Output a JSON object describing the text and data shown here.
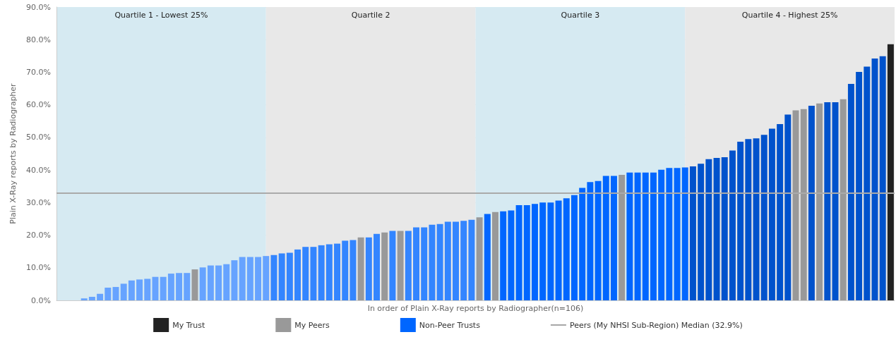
{
  "chart_data": {
    "type": "bar",
    "xlabel": "In order of Plain X-Ray reports by Radiographer(n=106)",
    "ylabel": "Plain X-Ray reports by Radiographer",
    "categories": [
      null,
      null,
      null,
      null,
      null,
      null,
      null,
      null,
      null,
      null,
      null,
      null,
      null,
      null,
      null,
      null,
      null,
      null,
      null,
      null,
      null,
      null,
      null,
      null,
      null,
      null,
      null,
      null,
      null,
      null,
      null,
      null,
      null,
      null,
      null,
      null,
      null,
      null,
      null,
      null,
      null,
      null,
      null,
      null,
      null,
      null,
      null,
      null,
      null,
      null,
      null,
      null,
      null,
      null,
      null,
      null,
      null,
      null,
      null,
      null,
      null,
      null,
      null,
      null,
      null,
      null,
      null,
      null,
      null,
      null,
      null,
      null,
      null,
      null,
      null,
      null,
      null,
      null,
      null,
      null,
      null,
      null,
      null,
      null,
      null,
      null,
      null,
      null,
      null,
      null,
      null,
      null,
      null,
      null,
      null,
      null,
      null,
      null,
      null,
      null,
      null,
      null,
      null,
      null,
      null,
      null
    ],
    "ylim": [
      0,
      90
    ],
    "yticks": [
      {
        "value": 0,
        "label": "0.0%"
      },
      {
        "value": 10,
        "label": "10.0%"
      },
      {
        "value": 20,
        "label": "20.0%"
      },
      {
        "value": 30,
        "label": "30.0%"
      },
      {
        "value": 40,
        "label": "40.0%"
      },
      {
        "value": 50,
        "label": "50.0%"
      },
      {
        "value": 60,
        "label": "60.0%"
      },
      {
        "value": 70,
        "label": "70.0%"
      },
      {
        "value": 80,
        "label": "80.0%"
      },
      {
        "value": 90,
        "label": "90.0%"
      }
    ],
    "tick_labels": "y",
    "grid": "y",
    "legend": "bottom",
    "series": [
      {
        "name": "My Trust",
        "color": "#222222",
        "values": [
          null,
          null,
          null,
          null,
          null,
          null,
          null,
          null,
          null,
          null,
          null,
          null,
          null,
          null,
          null,
          null,
          null,
          null,
          null,
          null,
          null,
          null,
          null,
          null,
          null,
          null,
          null,
          null,
          null,
          null,
          null,
          null,
          null,
          null,
          null,
          null,
          null,
          null,
          null,
          null,
          null,
          null,
          null,
          null,
          null,
          null,
          null,
          null,
          null,
          null,
          null,
          null,
          null,
          null,
          null,
          null,
          null,
          null,
          null,
          null,
          null,
          null,
          null,
          null,
          null,
          null,
          null,
          null,
          null,
          null,
          null,
          null,
          null,
          null,
          null,
          null,
          null,
          null,
          null,
          null,
          null,
          null,
          null,
          null,
          null,
          null,
          null,
          null,
          null,
          null,
          null,
          null,
          null,
          null,
          null,
          null,
          null,
          null,
          null,
          null,
          null,
          null,
          null,
          null,
          null,
          78.6
        ]
      },
      {
        "name": "My Peers",
        "color": "#999999",
        "values": [
          null,
          null,
          null,
          null,
          null,
          null,
          null,
          null,
          null,
          null,
          null,
          null,
          null,
          null,
          null,
          null,
          null,
          9.5,
          null,
          null,
          null,
          null,
          null,
          null,
          null,
          null,
          null,
          null,
          null,
          null,
          null,
          null,
          null,
          null,
          null,
          null,
          null,
          null,
          19.3,
          null,
          null,
          20.8,
          null,
          21.3,
          null,
          null,
          null,
          null,
          null,
          null,
          null,
          null,
          null,
          25.5,
          null,
          27.1,
          null,
          null,
          null,
          null,
          null,
          null,
          null,
          null,
          null,
          null,
          null,
          null,
          null,
          null,
          null,
          38.5,
          null,
          null,
          null,
          null,
          null,
          null,
          null,
          null,
          null,
          null,
          null,
          null,
          null,
          null,
          null,
          null,
          null,
          null,
          null,
          null,
          null,
          58.3,
          58.7,
          null,
          60.4,
          null,
          null,
          61.7,
          null,
          null,
          null,
          null,
          null,
          null
        ]
      },
      {
        "name": "Non-Peer Trusts",
        "color": "#0066ff",
        "values": [
          0,
          0,
          0,
          0.6,
          1.1,
          2.0,
          3.9,
          4.1,
          5.1,
          6.1,
          6.4,
          6.6,
          7.2,
          7.2,
          8.2,
          8.4,
          8.4,
          null,
          10.1,
          10.7,
          10.7,
          11.1,
          12.3,
          13.3,
          13.3,
          13.3,
          13.6,
          13.9,
          14.4,
          14.6,
          15.6,
          16.4,
          16.4,
          16.9,
          17.2,
          17.4,
          18.3,
          18.5,
          null,
          19.3,
          20.4,
          null,
          21.3,
          null,
          21.3,
          22.4,
          22.4,
          23.2,
          23.4,
          24.1,
          24.1,
          24.4,
          24.7,
          null,
          26.5,
          null,
          27.3,
          27.6,
          29.2,
          29.2,
          29.6,
          30.0,
          30.0,
          30.6,
          31.3,
          32.3,
          34.5,
          36.3,
          36.6,
          38.2,
          38.2,
          null,
          39.2,
          39.2,
          39.2,
          39.2,
          40.1,
          40.6,
          40.6,
          40.8,
          41.1,
          41.9,
          43.3,
          43.7,
          43.9,
          46.0,
          48.7,
          49.5,
          49.7,
          50.8,
          52.7,
          54.1,
          57.0,
          null,
          null,
          59.7,
          null,
          60.8,
          60.8,
          null,
          66.4,
          70.1,
          71.7,
          74.2,
          74.9,
          null
        ],
        "colors": [
          "#66a3ff",
          "#66a3ff",
          "#66a3ff",
          "#66a3ff",
          "#66a3ff",
          "#66a3ff",
          "#66a3ff",
          "#66a3ff",
          "#66a3ff",
          "#66a3ff",
          "#66a3ff",
          "#66a3ff",
          "#66a3ff",
          "#66a3ff",
          "#66a3ff",
          "#66a3ff",
          "#66a3ff",
          "#66a3ff",
          "#66a3ff",
          "#66a3ff",
          "#66a3ff",
          "#66a3ff",
          "#66a3ff",
          "#66a3ff",
          "#66a3ff",
          "#66a3ff",
          "#66a3ff",
          "#3385ff",
          "#3385ff",
          "#3385ff",
          "#3385ff",
          "#3385ff",
          "#3385ff",
          "#3385ff",
          "#3385ff",
          "#3385ff",
          "#3385ff",
          "#3385ff",
          "#3385ff",
          "#3385ff",
          "#3385ff",
          "#3385ff",
          "#3385ff",
          "#3385ff",
          "#3385ff",
          "#3385ff",
          "#3385ff",
          "#3385ff",
          "#3385ff",
          "#3385ff",
          "#3385ff",
          "#3385ff",
          "#3385ff",
          "#0066ff",
          "#0066ff",
          "#0066ff",
          "#0066ff",
          "#0066ff",
          "#0066ff",
          "#0066ff",
          "#0066ff",
          "#0066ff",
          "#0066ff",
          "#0066ff",
          "#0066ff",
          "#0066ff",
          "#0066ff",
          "#0066ff",
          "#0066ff",
          "#0066ff",
          "#0066ff",
          "#0066ff",
          "#0066ff",
          "#0066ff",
          "#0066ff",
          "#0066ff",
          "#0066ff",
          "#0066ff",
          "#0066ff",
          "#0066ff",
          "#0052cc",
          "#0052cc",
          "#0052cc",
          "#0052cc",
          "#0052cc",
          "#0052cc",
          "#0052cc",
          "#0052cc",
          "#0052cc",
          "#0052cc",
          "#0052cc",
          "#0052cc",
          "#0052cc",
          "#0052cc",
          "#0052cc",
          "#0052cc",
          "#0052cc",
          "#0052cc",
          "#0052cc",
          "#0052cc",
          "#0052cc",
          "#0052cc",
          "#0052cc",
          "#0052cc",
          "#0052cc",
          "#0052cc"
        ]
      }
    ],
    "ref_lines": [
      {
        "axis": "y",
        "value": 32.9,
        "label": "Peers (My NHSI Sub-Region) Median (32.9%)",
        "color": "#aaaaaa"
      }
    ],
    "annotations": [
      "Quartile 1 - Lowest 25%",
      "Quartile 2",
      "Quartile 3",
      "Quartile 4 - Highest 25%"
    ]
  }
}
